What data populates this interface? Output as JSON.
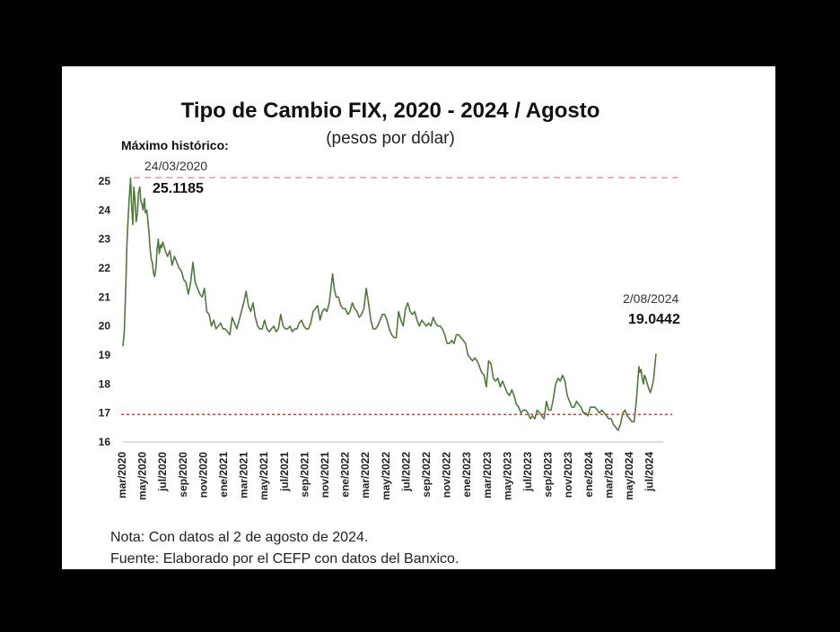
{
  "chart_data": {
    "type": "line",
    "title": "Tipo de Cambio FIX, 2020 - 2024 / Agosto",
    "subtitle": "(pesos por dólar)",
    "xlabel": "",
    "ylabel": "",
    "ylim": [
      16,
      25
    ],
    "yticks": [
      "25",
      "24",
      "23",
      "22",
      "21",
      "20",
      "19",
      "18",
      "17",
      "16"
    ],
    "xticks": [
      "mar/2020",
      "may/2020",
      "jul/2020",
      "sep/2020",
      "nov/2020",
      "ene/2021",
      "mar/2021",
      "may/2021",
      "jul/2021",
      "sep/2021",
      "nov/2021",
      "ene/2022",
      "mar/2022",
      "may/2022",
      "jul/2022",
      "sep/2022",
      "nov/2022",
      "ene/2023",
      "mar/2023",
      "may/2023",
      "jul/2023",
      "sep/2023",
      "nov/2023",
      "ene/2024",
      "mar/2024",
      "may/2024",
      "jul/2024"
    ],
    "grid": false,
    "line_color": "#4f7a3c",
    "reference_lines": [
      {
        "value": 25.1185,
        "color": "#e8a0a8",
        "style": "dashed"
      },
      {
        "value": 16.95,
        "color": "#d9362b",
        "style": "dotted"
      }
    ],
    "series": [
      {
        "points": [
          [
            "2020-03-01",
            19.3
          ],
          [
            "2020-03-05",
            19.8
          ],
          [
            "2020-03-10",
            21.5
          ],
          [
            "2020-03-13",
            22.8
          ],
          [
            "2020-03-17",
            23.8
          ],
          [
            "2020-03-20",
            24.4
          ],
          [
            "2020-03-24",
            25.1
          ],
          [
            "2020-03-27",
            24.2
          ],
          [
            "2020-03-31",
            23.5
          ],
          [
            "2020-04-03",
            24.8
          ],
          [
            "2020-04-07",
            24.3
          ],
          [
            "2020-04-10",
            23.6
          ],
          [
            "2020-04-14",
            23.9
          ],
          [
            "2020-04-17",
            24.6
          ],
          [
            "2020-04-21",
            24.8
          ],
          [
            "2020-04-24",
            24.3
          ],
          [
            "2020-04-28",
            24.2
          ],
          [
            "2020-05-01",
            24.0
          ],
          [
            "2020-05-05",
            24.4
          ],
          [
            "2020-05-08",
            23.9
          ],
          [
            "2020-05-12",
            24.0
          ],
          [
            "2020-05-15",
            23.7
          ],
          [
            "2020-05-19",
            23.2
          ],
          [
            "2020-05-22",
            22.7
          ],
          [
            "2020-05-26",
            22.3
          ],
          [
            "2020-05-29",
            22.2
          ],
          [
            "2020-06-02",
            21.8
          ],
          [
            "2020-06-05",
            21.7
          ],
          [
            "2020-06-09",
            22.0
          ],
          [
            "2020-06-12",
            22.6
          ],
          [
            "2020-06-16",
            23.0
          ],
          [
            "2020-06-19",
            22.5
          ],
          [
            "2020-06-23",
            22.8
          ],
          [
            "2020-06-26",
            22.7
          ],
          [
            "2020-06-30",
            22.9
          ],
          [
            "2020-07-07",
            22.6
          ],
          [
            "2020-07-14",
            22.4
          ],
          [
            "2020-07-21",
            22.6
          ],
          [
            "2020-07-28",
            22.1
          ],
          [
            "2020-08-04",
            22.4
          ],
          [
            "2020-08-11",
            22.2
          ],
          [
            "2020-08-18",
            22.0
          ],
          [
            "2020-08-25",
            21.9
          ],
          [
            "2020-09-01",
            21.6
          ],
          [
            "2020-09-08",
            21.5
          ],
          [
            "2020-09-15",
            21.1
          ],
          [
            "2020-09-22",
            21.5
          ],
          [
            "2020-09-29",
            22.2
          ],
          [
            "2020-10-06",
            21.5
          ],
          [
            "2020-10-13",
            21.3
          ],
          [
            "2020-10-20",
            21.1
          ],
          [
            "2020-10-27",
            21.0
          ],
          [
            "2020-11-03",
            21.3
          ],
          [
            "2020-11-10",
            20.5
          ],
          [
            "2020-11-17",
            20.4
          ],
          [
            "2020-11-24",
            20.0
          ],
          [
            "2020-12-01",
            20.2
          ],
          [
            "2020-12-08",
            19.9
          ],
          [
            "2020-12-15",
            20.0
          ],
          [
            "2020-12-22",
            20.1
          ],
          [
            "2020-12-29",
            19.9
          ],
          [
            "2021-01-05",
            19.9
          ],
          [
            "2021-01-12",
            19.8
          ],
          [
            "2021-01-19",
            19.7
          ],
          [
            "2021-01-26",
            20.3
          ],
          [
            "2021-02-02",
            20.1
          ],
          [
            "2021-02-09",
            19.9
          ],
          [
            "2021-02-16",
            20.2
          ],
          [
            "2021-02-23",
            20.5
          ],
          [
            "2021-03-02",
            20.8
          ],
          [
            "2021-03-09",
            21.2
          ],
          [
            "2021-03-16",
            20.7
          ],
          [
            "2021-03-23",
            20.5
          ],
          [
            "2021-03-30",
            20.8
          ],
          [
            "2021-04-06",
            20.3
          ],
          [
            "2021-04-13",
            20.0
          ],
          [
            "2021-04-20",
            19.9
          ],
          [
            "2021-04-27",
            19.9
          ],
          [
            "2021-05-04",
            20.2
          ],
          [
            "2021-05-11",
            19.9
          ],
          [
            "2021-05-18",
            19.8
          ],
          [
            "2021-05-25",
            19.9
          ],
          [
            "2021-06-01",
            20.0
          ],
          [
            "2021-06-08",
            19.8
          ],
          [
            "2021-06-15",
            19.9
          ],
          [
            "2021-06-22",
            20.4
          ],
          [
            "2021-06-29",
            20.0
          ],
          [
            "2021-07-06",
            19.9
          ],
          [
            "2021-07-13",
            19.9
          ],
          [
            "2021-07-20",
            20.0
          ],
          [
            "2021-07-27",
            19.8
          ],
          [
            "2021-08-03",
            19.9
          ],
          [
            "2021-08-10",
            19.9
          ],
          [
            "2021-08-17",
            20.1
          ],
          [
            "2021-08-24",
            20.2
          ],
          [
            "2021-08-31",
            20.0
          ],
          [
            "2021-09-07",
            19.9
          ],
          [
            "2021-09-14",
            19.9
          ],
          [
            "2021-09-21",
            20.1
          ],
          [
            "2021-09-28",
            20.5
          ],
          [
            "2021-10-05",
            20.6
          ],
          [
            "2021-10-12",
            20.7
          ],
          [
            "2021-10-19",
            20.2
          ],
          [
            "2021-10-26",
            20.5
          ],
          [
            "2021-11-02",
            20.6
          ],
          [
            "2021-11-09",
            20.5
          ],
          [
            "2021-11-16",
            20.8
          ],
          [
            "2021-11-23",
            21.5
          ],
          [
            "2021-11-26",
            21.8
          ],
          [
            "2021-12-01",
            21.3
          ],
          [
            "2021-12-07",
            21.0
          ],
          [
            "2021-12-14",
            21.0
          ],
          [
            "2021-12-21",
            20.7
          ],
          [
            "2021-12-28",
            20.6
          ],
          [
            "2022-01-04",
            20.6
          ],
          [
            "2022-01-11",
            20.4
          ],
          [
            "2022-01-18",
            20.5
          ],
          [
            "2022-01-25",
            20.8
          ],
          [
            "2022-02-01",
            20.6
          ],
          [
            "2022-02-08",
            20.5
          ],
          [
            "2022-02-15",
            20.3
          ],
          [
            "2022-02-22",
            20.4
          ],
          [
            "2022-03-01",
            20.6
          ],
          [
            "2022-03-08",
            21.3
          ],
          [
            "2022-03-15",
            20.8
          ],
          [
            "2022-03-22",
            20.2
          ],
          [
            "2022-03-29",
            19.9
          ],
          [
            "2022-04-05",
            19.9
          ],
          [
            "2022-04-12",
            20.0
          ],
          [
            "2022-04-19",
            20.2
          ],
          [
            "2022-04-26",
            20.4
          ],
          [
            "2022-05-03",
            20.4
          ],
          [
            "2022-05-10",
            20.2
          ],
          [
            "2022-05-17",
            19.9
          ],
          [
            "2022-05-24",
            19.7
          ],
          [
            "2022-05-31",
            19.6
          ],
          [
            "2022-06-07",
            19.6
          ],
          [
            "2022-06-14",
            20.5
          ],
          [
            "2022-06-21",
            20.2
          ],
          [
            "2022-06-28",
            20.0
          ],
          [
            "2022-07-05",
            20.6
          ],
          [
            "2022-07-12",
            20.8
          ],
          [
            "2022-07-19",
            20.5
          ],
          [
            "2022-07-26",
            20.4
          ],
          [
            "2022-08-02",
            20.5
          ],
          [
            "2022-08-09",
            20.2
          ],
          [
            "2022-08-16",
            20.0
          ],
          [
            "2022-08-23",
            20.2
          ],
          [
            "2022-08-30",
            20.1
          ],
          [
            "2022-09-06",
            20.0
          ],
          [
            "2022-09-13",
            20.1
          ],
          [
            "2022-09-20",
            20.0
          ],
          [
            "2022-09-27",
            20.3
          ],
          [
            "2022-10-04",
            20.1
          ],
          [
            "2022-10-11",
            20.0
          ],
          [
            "2022-10-18",
            20.0
          ],
          [
            "2022-10-25",
            19.9
          ],
          [
            "2022-11-01",
            19.7
          ],
          [
            "2022-11-08",
            19.4
          ],
          [
            "2022-11-15",
            19.4
          ],
          [
            "2022-11-22",
            19.5
          ],
          [
            "2022-11-29",
            19.4
          ],
          [
            "2022-12-06",
            19.7
          ],
          [
            "2022-12-13",
            19.7
          ],
          [
            "2022-12-20",
            19.6
          ],
          [
            "2022-12-27",
            19.5
          ],
          [
            "2023-01-03",
            19.4
          ],
          [
            "2023-01-10",
            19.0
          ],
          [
            "2023-01-17",
            18.9
          ],
          [
            "2023-01-24",
            18.8
          ],
          [
            "2023-01-31",
            18.9
          ],
          [
            "2023-02-07",
            18.8
          ],
          [
            "2023-02-14",
            18.6
          ],
          [
            "2023-02-21",
            18.4
          ],
          [
            "2023-02-28",
            18.3
          ],
          [
            "2023-03-07",
            17.9
          ],
          [
            "2023-03-14",
            18.8
          ],
          [
            "2023-03-21",
            18.7
          ],
          [
            "2023-03-28",
            18.2
          ],
          [
            "2023-04-04",
            18.1
          ],
          [
            "2023-04-11",
            18.2
          ],
          [
            "2023-04-18",
            17.9
          ],
          [
            "2023-04-25",
            18.1
          ],
          [
            "2023-05-02",
            17.9
          ],
          [
            "2023-05-09",
            17.7
          ],
          [
            "2023-05-16",
            17.6
          ],
          [
            "2023-05-23",
            17.8
          ],
          [
            "2023-05-30",
            17.6
          ],
          [
            "2023-06-06",
            17.3
          ],
          [
            "2023-06-13",
            17.2
          ],
          [
            "2023-06-20",
            17.0
          ],
          [
            "2023-06-27",
            17.1
          ],
          [
            "2023-07-04",
            17.1
          ],
          [
            "2023-07-11",
            17.0
          ],
          [
            "2023-07-18",
            16.8
          ],
          [
            "2023-07-25",
            16.9
          ],
          [
            "2023-08-01",
            16.8
          ],
          [
            "2023-08-08",
            17.1
          ],
          [
            "2023-08-15",
            17.0
          ],
          [
            "2023-08-22",
            16.9
          ],
          [
            "2023-08-29",
            16.8
          ],
          [
            "2023-09-05",
            17.4
          ],
          [
            "2023-09-12",
            17.1
          ],
          [
            "2023-09-19",
            17.1
          ],
          [
            "2023-09-26",
            17.5
          ],
          [
            "2023-10-03",
            18.0
          ],
          [
            "2023-10-10",
            18.2
          ],
          [
            "2023-10-17",
            18.1
          ],
          [
            "2023-10-24",
            18.3
          ],
          [
            "2023-10-31",
            18.1
          ],
          [
            "2023-11-07",
            17.6
          ],
          [
            "2023-11-14",
            17.4
          ],
          [
            "2023-11-21",
            17.2
          ],
          [
            "2023-11-28",
            17.2
          ],
          [
            "2023-12-05",
            17.4
          ],
          [
            "2023-12-12",
            17.3
          ],
          [
            "2023-12-19",
            17.2
          ],
          [
            "2023-12-26",
            17.0
          ],
          [
            "2024-01-02",
            17.0
          ],
          [
            "2024-01-09",
            16.9
          ],
          [
            "2024-01-16",
            17.2
          ],
          [
            "2024-01-23",
            17.2
          ],
          [
            "2024-01-30",
            17.2
          ],
          [
            "2024-02-06",
            17.1
          ],
          [
            "2024-02-13",
            17.0
          ],
          [
            "2024-02-20",
            17.1
          ],
          [
            "2024-02-27",
            17.0
          ],
          [
            "2024-03-05",
            16.9
          ],
          [
            "2024-03-12",
            16.8
          ],
          [
            "2024-03-19",
            16.8
          ],
          [
            "2024-03-26",
            16.6
          ],
          [
            "2024-04-02",
            16.5
          ],
          [
            "2024-04-09",
            16.4
          ],
          [
            "2024-04-16",
            16.6
          ],
          [
            "2024-04-23",
            17.0
          ],
          [
            "2024-04-30",
            17.1
          ],
          [
            "2024-05-07",
            16.9
          ],
          [
            "2024-05-14",
            16.8
          ],
          [
            "2024-05-21",
            16.7
          ],
          [
            "2024-05-28",
            16.7
          ],
          [
            "2024-06-04",
            17.5
          ],
          [
            "2024-06-11",
            18.6
          ],
          [
            "2024-06-14",
            18.4
          ],
          [
            "2024-06-18",
            18.5
          ],
          [
            "2024-06-21",
            18.2
          ],
          [
            "2024-06-25",
            18.0
          ],
          [
            "2024-06-28",
            18.3
          ],
          [
            "2024-07-02",
            18.2
          ],
          [
            "2024-07-09",
            17.9
          ],
          [
            "2024-07-16",
            17.7
          ],
          [
            "2024-07-23",
            18.0
          ],
          [
            "2024-07-26",
            18.2
          ],
          [
            "2024-07-30",
            18.7
          ],
          [
            "2024-08-02",
            19.0442
          ]
        ]
      }
    ],
    "annotations": {
      "max_label": "Máximo histórico:",
      "max_date": "24/03/2020",
      "max_value": "25.1185",
      "last_date": "2/08/2024",
      "last_value": "19.0442"
    }
  },
  "notes": {
    "nota": "Nota: Con datos al 2 de agosto de 2024.",
    "fuente": "Fuente: Elaborado por el CEFP con datos del Banxico."
  }
}
